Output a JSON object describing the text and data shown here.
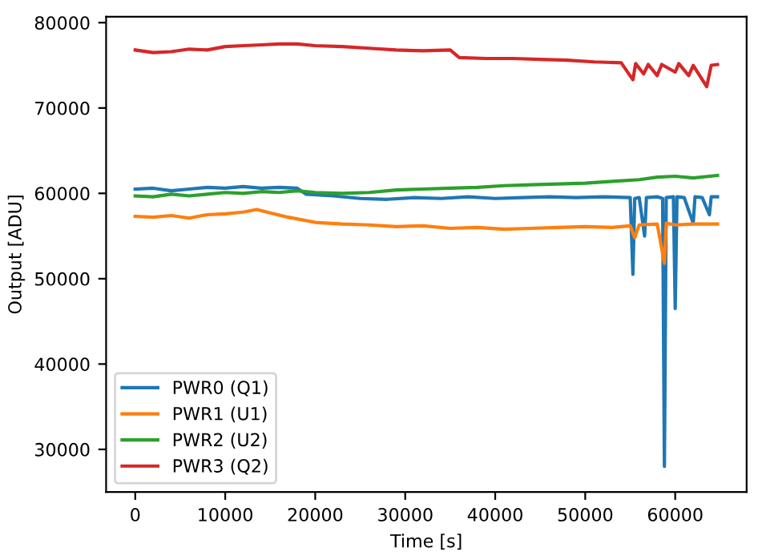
{
  "chart_data": {
    "type": "line",
    "xlabel": "Time [s]",
    "ylabel": "Output [ADU]",
    "xlim": [
      -3235,
      67935
    ],
    "ylim": [
      25000,
      80700
    ],
    "xticks": [
      0,
      10000,
      20000,
      30000,
      40000,
      50000,
      60000
    ],
    "yticks": [
      30000,
      40000,
      50000,
      60000,
      70000,
      80000
    ],
    "legend": "lower left",
    "grid": false,
    "marker": "none",
    "line_style": "solid",
    "series": [
      {
        "name": "PWR0 (Q1)",
        "color": "#1f77b4",
        "x": [
          0,
          2000,
          4000,
          6000,
          8000,
          10000,
          12000,
          14000,
          16000,
          18000,
          19000,
          22000,
          25000,
          28000,
          31000,
          34000,
          37000,
          40000,
          43000,
          46000,
          49000,
          52000,
          55000,
          55300,
          55500,
          56000,
          56600,
          56800,
          58000,
          58600,
          58800,
          59000,
          59800,
          60000,
          60200,
          61000,
          62000,
          62200,
          63000,
          63800,
          64000,
          64700
        ],
        "values": [
          60500,
          60600,
          60300,
          60500,
          60700,
          60600,
          60800,
          60600,
          60700,
          60600,
          59900,
          59700,
          59400,
          59300,
          59500,
          59400,
          59600,
          59400,
          59500,
          59600,
          59500,
          59600,
          59500,
          50500,
          59400,
          59500,
          55000,
          59500,
          59600,
          59400,
          28000,
          59500,
          59600,
          46500,
          59600,
          59500,
          56500,
          59600,
          59500,
          57500,
          59600,
          59600
        ]
      },
      {
        "name": "PWR1 (U1)",
        "color": "#ff7f0e",
        "x": [
          0,
          2000,
          4000,
          6000,
          8000,
          10000,
          12000,
          13500,
          15000,
          17000,
          20000,
          23000,
          26000,
          29000,
          32000,
          35000,
          38000,
          41000,
          44000,
          47000,
          50000,
          53000,
          55000,
          55500,
          56000,
          58000,
          58800,
          59000,
          60000,
          62000,
          64700
        ],
        "values": [
          57300,
          57200,
          57400,
          57100,
          57500,
          57600,
          57800,
          58100,
          57700,
          57200,
          56600,
          56400,
          56300,
          56100,
          56200,
          55900,
          56000,
          55800,
          55900,
          56000,
          56100,
          56000,
          56200,
          54800,
          56300,
          56400,
          51800,
          56500,
          56300,
          56400,
          56400
        ]
      },
      {
        "name": "PWR2 (U2)",
        "color": "#2ca02c",
        "x": [
          0,
          2000,
          4000,
          6000,
          8000,
          10000,
          12000,
          14000,
          16000,
          18000,
          20000,
          23000,
          26000,
          29000,
          32000,
          35000,
          38000,
          41000,
          44000,
          47000,
          50000,
          53000,
          56000,
          58000,
          60000,
          62000,
          64700
        ],
        "values": [
          59700,
          59600,
          59900,
          59700,
          59900,
          60100,
          60000,
          60200,
          60100,
          60300,
          60100,
          60000,
          60100,
          60400,
          60500,
          60600,
          60700,
          60900,
          61000,
          61100,
          61200,
          61400,
          61600,
          61900,
          62000,
          61800,
          62100
        ]
      },
      {
        "name": "PWR3 (Q2)",
        "color": "#d62728",
        "x": [
          0,
          2000,
          4000,
          6000,
          8000,
          10000,
          12000,
          14000,
          16000,
          18000,
          20000,
          23000,
          26000,
          29000,
          32000,
          35000,
          36000,
          39000,
          42000,
          45000,
          48000,
          51000,
          54000,
          55300,
          55600,
          56500,
          57000,
          58000,
          58500,
          60000,
          60400,
          61500,
          62000,
          63500,
          64000,
          64700
        ],
        "values": [
          76800,
          76500,
          76600,
          76900,
          76800,
          77200,
          77300,
          77400,
          77500,
          77500,
          77300,
          77200,
          77000,
          76800,
          76700,
          76800,
          75900,
          75800,
          75800,
          75700,
          75600,
          75400,
          75300,
          73300,
          75200,
          74000,
          75100,
          73800,
          75100,
          74200,
          75200,
          73800,
          75000,
          72500,
          75000,
          75100
        ]
      }
    ]
  }
}
